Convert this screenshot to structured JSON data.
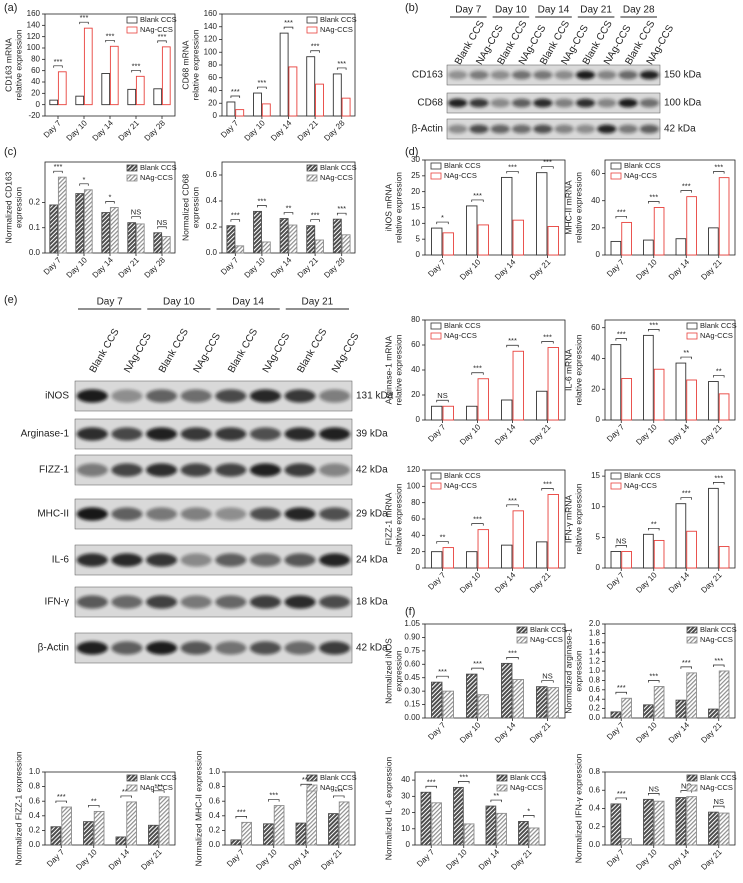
{
  "panel_labels": [
    "(a)",
    "(b)",
    "(c)",
    "(d)",
    "(e)",
    "(f)"
  ],
  "blots": [
    {
      "days": [
        "Day 7",
        "Day 10",
        "Day 14",
        "Day 21",
        "Day 28"
      ],
      "lanes": [
        "Blank CCS",
        "NAg-CCS",
        "Blank CCS",
        "NAg-CCS",
        "Blank CCS",
        "NAg-CCS",
        "Blank CCS",
        "NAg-CCS",
        "Blank CCS",
        "NAg-CCS"
      ],
      "rows": [
        {
          "protein": "CD163",
          "size": "150 kDa"
        },
        {
          "protein": "CD68",
          "size": "100 kDa"
        },
        {
          "protein": "β-Actin",
          "size": "42 kDa"
        }
      ]
    },
    {
      "days": [
        "Day 7",
        "Day 10",
        "Day 14",
        "Day 21"
      ],
      "lanes": [
        "Blank CCS",
        "NAg-CCS",
        "Blank CCS",
        "NAg-CCS",
        "Blank CCS",
        "NAg-CCS",
        "Blank CCS",
        "NAg-CCS"
      ],
      "rows": [
        {
          "protein": "iNOS",
          "size": "131 kDa"
        },
        {
          "protein": "Arginase-1",
          "size": "39 kDa"
        },
        {
          "protein": "FIZZ-1",
          "size": "42 kDa"
        },
        {
          "protein": "MHC-II",
          "size": "29 kDa"
        },
        {
          "protein": "IL-6",
          "size": "24 kDa"
        },
        {
          "protein": "IFN-γ",
          "size": "18 kDa"
        },
        {
          "protein": "β-Actin",
          "size": "42 kDa"
        }
      ]
    }
  ],
  "chart_data": [
    {
      "type": "bar",
      "hatch": false,
      "legend": "upper right",
      "ylabel": [
        "CD163 mRNA",
        "relative expression"
      ],
      "categories": [
        "Day 7",
        "Day 10",
        "Day 14",
        "Day 21",
        "Day 28"
      ],
      "series": [
        {
          "name": "Blank CCS",
          "color": "#333333",
          "values": [
            8,
            15,
            55,
            27,
            28
          ]
        },
        {
          "name": "NAg-CCS",
          "color": "#e8413c",
          "values": [
            58,
            135,
            103,
            50,
            102
          ]
        }
      ],
      "annotations": [
        "***",
        "***",
        "***",
        "***",
        "***"
      ],
      "ylim": [
        -20,
        160
      ],
      "yticks": [
        -20,
        0,
        20,
        40,
        60,
        80,
        100,
        120,
        140,
        160
      ]
    },
    {
      "type": "bar",
      "hatch": false,
      "legend": "upper right",
      "ylabel": [
        "CD68 mRNA",
        "relative expression"
      ],
      "categories": [
        "Day 7",
        "Day 10",
        "Day 14",
        "Day 21",
        "Day 28"
      ],
      "series": [
        {
          "name": "Blank CCS",
          "color": "#333333",
          "values": [
            22,
            36,
            130,
            93,
            66
          ]
        },
        {
          "name": "NAg-CCS",
          "color": "#e8413c",
          "values": [
            10,
            19,
            77,
            50,
            28
          ]
        }
      ],
      "annotations": [
        "***",
        "***",
        "***",
        "***",
        "***"
      ],
      "ylim": [
        0,
        160
      ],
      "yticks": [
        0,
        20,
        40,
        60,
        80,
        100,
        120,
        140,
        160
      ]
    },
    {
      "type": "bar",
      "hatch": true,
      "legend": "upper right",
      "ylabel": [
        "Normalized CD163",
        "expression"
      ],
      "categories": [
        "Day 7",
        "Day 10",
        "Day 14",
        "Day 21",
        "Day 28"
      ],
      "series": [
        {
          "name": "Blank CCS",
          "color": "#4d4d4d",
          "values": [
            0.19,
            0.235,
            0.16,
            0.12,
            0.08
          ]
        },
        {
          "name": "NAg-CCS",
          "color": "#8c8c8c",
          "values": [
            0.3,
            0.25,
            0.18,
            0.115,
            0.065
          ]
        }
      ],
      "annotations": [
        "***",
        "*",
        "*",
        "NS",
        "NS"
      ],
      "ylim": [
        0,
        0.36
      ],
      "yticks": [
        {
          "value": 0,
          "label": "0.0"
        },
        0.1,
        0.2
      ]
    },
    {
      "type": "bar",
      "hatch": true,
      "legend": "upper right",
      "ylabel": [
        "Normalized CD68",
        "expression"
      ],
      "categories": [
        "Day 7",
        "Day 10",
        "Day 14",
        "Day 21",
        "Day 28"
      ],
      "series": [
        {
          "name": "Blank CCS",
          "color": "#4d4d4d",
          "values": [
            0.21,
            0.32,
            0.265,
            0.21,
            0.26
          ]
        },
        {
          "name": "NAg-CCS",
          "color": "#8c8c8c",
          "values": [
            0.055,
            0.085,
            0.215,
            0.1,
            0.14
          ]
        }
      ],
      "annotations": [
        "***",
        "***",
        "**",
        "***",
        "***"
      ],
      "ylim": [
        0,
        0.7
      ],
      "yticks": [
        {
          "value": 0,
          "label": "0.0"
        },
        0.2,
        0.4,
        0.6
      ]
    },
    {
      "type": "bar",
      "hatch": false,
      "legend": "upper left",
      "ylabel": [
        "iNOS mRNA",
        "relative expression"
      ],
      "categories": [
        "Day 7",
        "Day 10",
        "Day 14",
        "Day 21"
      ],
      "series": [
        {
          "name": "Blank CCS",
          "color": "#333333",
          "values": [
            8.5,
            15.5,
            24.5,
            26
          ]
        },
        {
          "name": "NAg-CCS",
          "color": "#e8413c",
          "values": [
            7,
            9.5,
            11,
            9
          ]
        }
      ],
      "annotations": [
        "*",
        "***",
        "***",
        "***"
      ],
      "ylim": [
        0,
        30
      ],
      "yticks": [
        0,
        5,
        10,
        15,
        20,
        25,
        30
      ]
    },
    {
      "type": "bar",
      "hatch": false,
      "legend": "upper left",
      "ylabel": [
        "MHC-II mRNA",
        "relative expression"
      ],
      "categories": [
        "Day 7",
        "Day 10",
        "Day 14",
        "Day 21"
      ],
      "series": [
        {
          "name": "Blank CCS",
          "color": "#333333",
          "values": [
            10,
            11,
            12,
            20
          ]
        },
        {
          "name": "NAg-CCS",
          "color": "#e8413c",
          "values": [
            24,
            35,
            43,
            57
          ]
        }
      ],
      "annotations": [
        "***",
        "***",
        "***",
        "***"
      ],
      "ylim": [
        0,
        70
      ],
      "yticks": [
        0,
        20,
        40,
        60
      ]
    },
    {
      "type": "bar",
      "hatch": false,
      "legend": "upper left",
      "ylabel": [
        "Arginase-1 mRNA",
        "relative expression"
      ],
      "categories": [
        "Day 7",
        "Day 10",
        "Day 14",
        "Day 21"
      ],
      "series": [
        {
          "name": "Blank CCS",
          "color": "#333333",
          "values": [
            11,
            11,
            16,
            23
          ]
        },
        {
          "name": "NAg-CCS",
          "color": "#e8413c",
          "values": [
            11,
            33,
            55,
            58
          ]
        }
      ],
      "annotations": [
        "NS",
        "***",
        "***",
        "***"
      ],
      "ylim": [
        0,
        80
      ],
      "yticks": [
        0,
        20,
        40,
        60,
        80
      ]
    },
    {
      "type": "bar",
      "hatch": false,
      "legend": "upper right",
      "ylabel": [
        "IL-6 mRNA",
        "relative expression"
      ],
      "categories": [
        "Day 7",
        "Day 10",
        "Day 14",
        "Day 21"
      ],
      "series": [
        {
          "name": "Blank CCS",
          "color": "#333333",
          "values": [
            49,
            55,
            37,
            25
          ]
        },
        {
          "name": "NAg-CCS",
          "color": "#e8413c",
          "values": [
            27,
            33,
            26,
            17
          ]
        }
      ],
      "annotations": [
        "***",
        "***",
        "**",
        "**"
      ],
      "ylim": [
        0,
        65
      ],
      "yticks": [
        0,
        20,
        40,
        60
      ]
    },
    {
      "type": "bar",
      "hatch": false,
      "legend": "upper left",
      "ylabel": [
        "FIZZ-1 mRNA",
        "relative expression"
      ],
      "categories": [
        "Day 7",
        "Day 10",
        "Day 14",
        "Day 21"
      ],
      "series": [
        {
          "name": "Blank CCS",
          "color": "#333333",
          "values": [
            20,
            20,
            28,
            32
          ]
        },
        {
          "name": "NAg-CCS",
          "color": "#e8413c",
          "values": [
            25,
            47,
            70,
            90
          ]
        }
      ],
      "annotations": [
        "**",
        "***",
        "***",
        "***"
      ],
      "ylim": [
        0,
        120
      ],
      "yticks": [
        0,
        20,
        40,
        60,
        80,
        100,
        120
      ]
    },
    {
      "type": "bar",
      "hatch": false,
      "legend": "upper left",
      "ylabel": [
        "IFN-γ mRNA",
        "relative expression"
      ],
      "categories": [
        "Day 7",
        "Day 10",
        "Day 14",
        "Day 21"
      ],
      "series": [
        {
          "name": "Blank CCS",
          "color": "#333333",
          "values": [
            2.7,
            5.5,
            10.5,
            13
          ]
        },
        {
          "name": "NAg-CCS",
          "color": "#e8413c",
          "values": [
            2.7,
            4.5,
            6,
            3.5
          ]
        }
      ],
      "annotations": [
        "NS",
        "**",
        "***",
        "***"
      ],
      "ylim": [
        0,
        16
      ],
      "yticks": [
        0,
        5,
        10,
        15
      ]
    },
    {
      "type": "bar",
      "hatch": true,
      "legend": "upper right",
      "ylabel": [
        "Normalized iNOS",
        "expression"
      ],
      "categories": [
        "Day 7",
        "Day 10",
        "Day 14",
        "Day 21"
      ],
      "series": [
        {
          "name": "Blank CCS",
          "color": "#4d4d4d",
          "values": [
            0.4,
            0.49,
            0.61,
            0.35
          ]
        },
        {
          "name": "NAg-CCS",
          "color": "#8c8c8c",
          "values": [
            0.3,
            0.26,
            0.43,
            0.34
          ]
        }
      ],
      "annotations": [
        "***",
        "***",
        "***",
        "NS"
      ],
      "ylim": [
        0,
        1.05
      ],
      "yticks": [
        {
          "value": 0,
          "label": "0.00"
        },
        0.15,
        {
          "value": 0.3,
          "label": "0.30"
        },
        0.45,
        {
          "value": 0.6,
          "label": "0.60"
        },
        0.75,
        {
          "value": 0.9,
          "label": "0.90"
        },
        1.05
      ]
    },
    {
      "type": "bar",
      "hatch": true,
      "legend": "upper right",
      "ylabel": [
        "Normalized arginase-1",
        "expression"
      ],
      "categories": [
        "Day 7",
        "Day 10",
        "Day 14",
        "Day 21"
      ],
      "series": [
        {
          "name": "Blank CCS",
          "color": "#4d4d4d",
          "values": [
            0.13,
            0.28,
            0.38,
            0.19
          ]
        },
        {
          "name": "NAg-CCS",
          "color": "#8c8c8c",
          "values": [
            0.42,
            0.67,
            0.96,
            1.0
          ]
        }
      ],
      "annotations": [
        "***",
        "***",
        "***",
        "***"
      ],
      "ylim": [
        0,
        2
      ],
      "yticks": [
        {
          "value": 0,
          "label": "0.0"
        },
        0.2,
        0.4,
        0.6,
        0.8,
        {
          "value": 1,
          "label": "1.0"
        },
        1.2,
        1.4,
        1.6,
        1.8,
        {
          "value": 2,
          "label": "2.0"
        }
      ]
    },
    {
      "type": "bar",
      "hatch": true,
      "legend": "upper right",
      "ylabel": [
        "Normalized FIZZ-1 expression"
      ],
      "categories": [
        "Day 7",
        "Day 10",
        "Day 14",
        "Day 21"
      ],
      "series": [
        {
          "name": "Blank CCS",
          "color": "#4d4d4d",
          "values": [
            0.25,
            0.32,
            0.11,
            0.27
          ]
        },
        {
          "name": "NAg-CCS",
          "color": "#8c8c8c",
          "values": [
            0.52,
            0.46,
            0.59,
            0.66
          ]
        }
      ],
      "annotations": [
        "***",
        "**",
        "***",
        "***"
      ],
      "ylim": [
        0,
        1
      ],
      "yticks": [
        {
          "value": 0,
          "label": "0.0"
        },
        0.2,
        0.4,
        0.6,
        0.8,
        {
          "value": 1,
          "label": "1.0"
        }
      ]
    },
    {
      "type": "bar",
      "hatch": true,
      "legend": "upper right",
      "ylabel": [
        "Normalized MHC-II expression"
      ],
      "categories": [
        "Day 7",
        "Day 10",
        "Day 14",
        "Day 21"
      ],
      "series": [
        {
          "name": "Blank CCS",
          "color": "#4d4d4d",
          "values": [
            0.07,
            0.29,
            0.3,
            0.43
          ]
        },
        {
          "name": "NAg-CCS",
          "color": "#8c8c8c",
          "values": [
            0.31,
            0.54,
            0.75,
            0.59
          ]
        }
      ],
      "annotations": [
        "***",
        "***",
        "***",
        "***"
      ],
      "ylim": [
        0,
        1
      ],
      "yticks": [
        {
          "value": 0,
          "label": "0.0"
        },
        0.2,
        0.4,
        0.6,
        0.8,
        {
          "value": 1,
          "label": "1.0"
        }
      ]
    },
    {
      "type": "bar",
      "hatch": true,
      "legend": "upper right",
      "ylabel": [
        "Normalized IL-6 expression"
      ],
      "categories": [
        "Day 7",
        "Day 10",
        "Day 14",
        "Day 21"
      ],
      "series": [
        {
          "name": "Blank CCS",
          "color": "#4d4d4d",
          "values": [
            32.5,
            35.5,
            24,
            14.5
          ]
        },
        {
          "name": "NAg-CCS",
          "color": "#8c8c8c",
          "values": [
            26,
            13,
            19.5,
            10.5
          ]
        }
      ],
      "annotations": [
        "***",
        "***",
        "**",
        "*"
      ],
      "ylim": [
        0,
        45
      ],
      "yticks": [
        0,
        10,
        20,
        30,
        40
      ]
    },
    {
      "type": "bar",
      "hatch": true,
      "legend": "upper right",
      "ylabel": [
        "Normalized IFN-γ expression"
      ],
      "categories": [
        "Day 7",
        "Day 10",
        "Day 14",
        "Day 21"
      ],
      "series": [
        {
          "name": "Blank CCS",
          "color": "#4d4d4d",
          "values": [
            0.45,
            0.5,
            0.52,
            0.36
          ]
        },
        {
          "name": "NAg-CCS",
          "color": "#8c8c8c",
          "values": [
            0.07,
            0.48,
            0.53,
            0.35
          ]
        }
      ],
      "annotations": [
        "***",
        "NS",
        "NS",
        "NS"
      ],
      "ylim": [
        0,
        0.8
      ],
      "yticks": [
        {
          "value": 0,
          "label": "0.0"
        },
        0.2,
        0.4,
        0.6,
        0.8
      ]
    }
  ]
}
